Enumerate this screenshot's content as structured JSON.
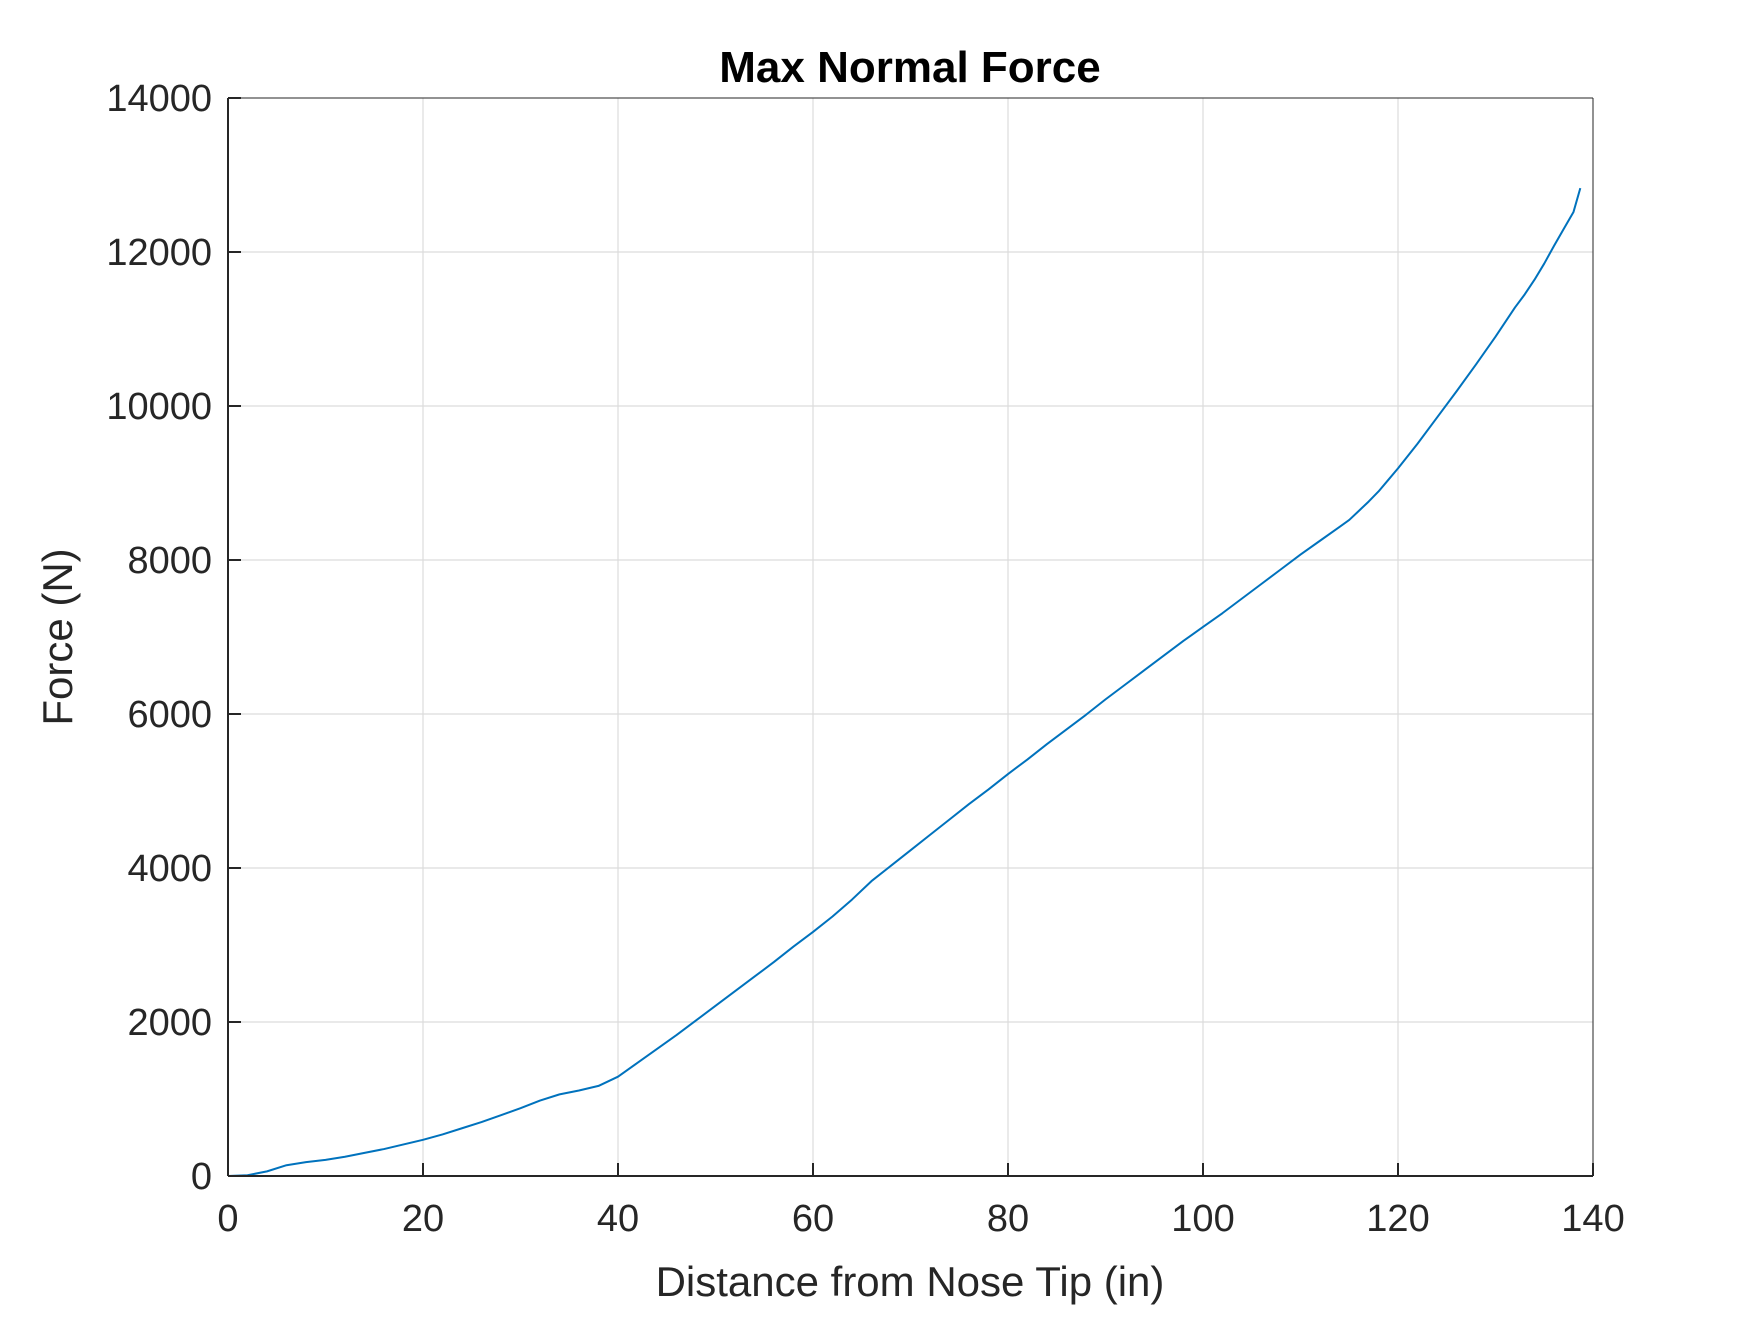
{
  "chart_data": {
    "type": "line",
    "title": "Max Normal Force",
    "xlabel": "Distance from Nose Tip (in)",
    "ylabel": "Force (N)",
    "xlim": [
      0,
      140
    ],
    "ylim": [
      0,
      14000
    ],
    "xticks": [
      0,
      20,
      40,
      60,
      80,
      100,
      120,
      140
    ],
    "yticks": [
      0,
      2000,
      4000,
      6000,
      8000,
      10000,
      12000,
      14000
    ],
    "grid": true,
    "series": [
      {
        "color": "#0072bd",
        "x": [
          0,
          2,
          4,
          6,
          8,
          10,
          12,
          14,
          16,
          18,
          20,
          22,
          24,
          26,
          28,
          30,
          32,
          34,
          36,
          38,
          39,
          40,
          42,
          44,
          46,
          48,
          50,
          52,
          54,
          56,
          58,
          60,
          62,
          64,
          66,
          68,
          70,
          72,
          74,
          76,
          78,
          80,
          82,
          84,
          86,
          88,
          90,
          92,
          94,
          96,
          98,
          100,
          102,
          104,
          106,
          108,
          110,
          112,
          114,
          115,
          116,
          117,
          118,
          119,
          120,
          122,
          124,
          126,
          128,
          130,
          132,
          133,
          134,
          135,
          136,
          137,
          138,
          138.7
        ],
        "y": [
          0,
          10,
          60,
          140,
          180,
          210,
          250,
          300,
          350,
          410,
          470,
          540,
          620,
          700,
          790,
          880,
          980,
          1060,
          1110,
          1170,
          1230,
          1290,
          1470,
          1650,
          1830,
          2020,
          2210,
          2400,
          2590,
          2780,
          2980,
          3170,
          3370,
          3590,
          3830,
          4030,
          4230,
          4430,
          4630,
          4830,
          5020,
          5220,
          5410,
          5610,
          5800,
          5990,
          6190,
          6380,
          6570,
          6760,
          6950,
          7130,
          7310,
          7500,
          7690,
          7880,
          8070,
          8250,
          8430,
          8520,
          8640,
          8760,
          8890,
          9040,
          9190,
          9510,
          9850,
          10190,
          10540,
          10900,
          11280,
          11450,
          11640,
          11850,
          12080,
          12300,
          12520,
          12830
        ]
      }
    ]
  }
}
